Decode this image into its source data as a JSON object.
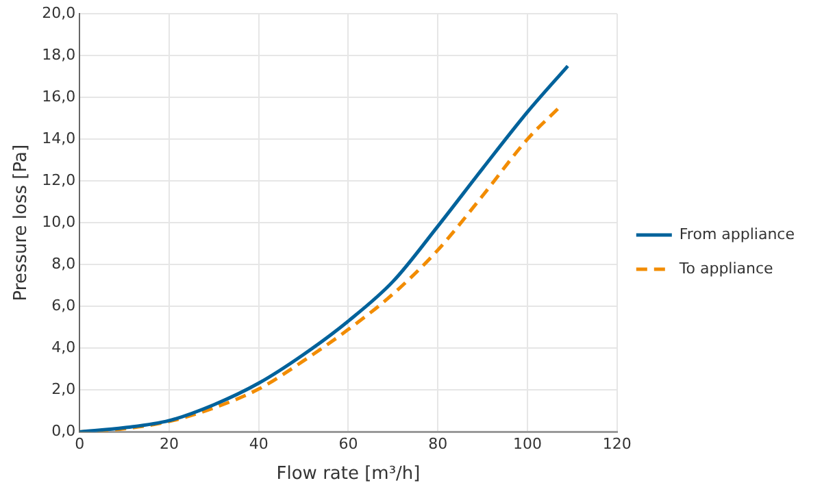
{
  "chart_data": {
    "type": "line",
    "xlabel": "Flow rate [m³/h]",
    "ylabel": "Pressure loss [Pa]",
    "xlim": [
      0,
      120
    ],
    "xticks": [
      0,
      20,
      40,
      60,
      80,
      100,
      120
    ],
    "ylim": [
      0,
      20
    ],
    "yticks": [
      {
        "value": 0,
        "label": "0,0"
      },
      {
        "value": 2,
        "label": "2,0"
      },
      {
        "value": 4,
        "label": "4,0"
      },
      {
        "value": 6,
        "label": "6,0"
      },
      {
        "value": 8,
        "label": "8,0"
      },
      {
        "value": 10,
        "label": "10,0"
      },
      {
        "value": 12,
        "label": "12,0"
      },
      {
        "value": 14,
        "label": "14,0"
      },
      {
        "value": 16,
        "label": "16,0"
      },
      {
        "value": 18,
        "label": "18,0"
      },
      {
        "value": 20,
        "label": "20,0"
      }
    ],
    "grid": true,
    "legend": "right",
    "marker": "none",
    "series": [
      {
        "name": "From appliance",
        "color": "#00629b",
        "line_style": "solid",
        "x": [
          0,
          10,
          20,
          30,
          40,
          50,
          60,
          70,
          80,
          90,
          100,
          109
        ],
        "values": [
          0,
          0.2,
          0.54,
          1.3,
          2.33,
          3.7,
          5.3,
          7.2,
          9.84,
          12.6,
          15.3,
          17.5
        ]
      },
      {
        "name": "To appliance",
        "color": "#f28c00",
        "line_style": "dashed",
        "x": [
          0,
          10,
          20,
          30,
          40,
          50,
          60,
          70,
          80,
          90,
          100,
          107
        ],
        "values": [
          0,
          0.15,
          0.5,
          1.15,
          2.05,
          3.4,
          4.9,
          6.6,
          8.7,
          11.3,
          14.0,
          15.5
        ]
      }
    ]
  }
}
